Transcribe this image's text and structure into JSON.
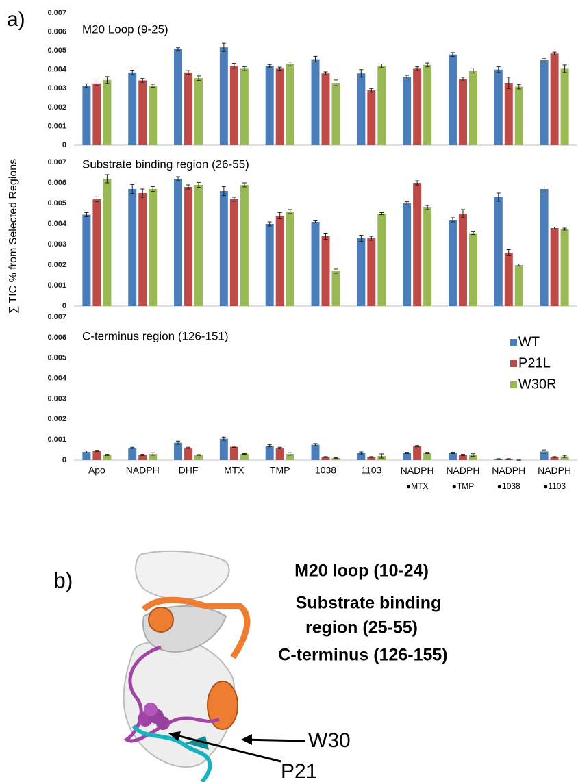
{
  "panel_a_label": "a)",
  "chart_data": {
    "type": "bar",
    "y_label": "∑ TIC % from Selected Regions",
    "categories": [
      "Apo",
      "NADPH",
      "DHF",
      "MTX",
      "TMP",
      "1038",
      "1103",
      "NADPH\n●MTX",
      "NADPH\n●TMP",
      "NADPH\n●1038",
      "NADPH\n●1103"
    ],
    "series": [
      {
        "name": "WT",
        "color": "#4a7ebb"
      },
      {
        "name": "P21L",
        "color": "#be4b48"
      },
      {
        "name": "W30R",
        "color": "#98b954"
      }
    ],
    "panels": [
      {
        "title": "M20 Loop (9-25)",
        "ylim": [
          0,
          0.007
        ],
        "yticks": [
          0,
          0.001,
          0.002,
          0.003,
          0.004,
          0.005,
          0.006,
          0.007
        ],
        "series": [
          {
            "values": [
              0.00315,
              0.00385,
              0.00508,
              0.00518,
              0.0042,
              0.00455,
              0.0038,
              0.0036,
              0.0048,
              0.004,
              0.0045
            ],
            "errors": [
              0.0001,
              0.00012,
              8e-05,
              0.00022,
              7e-05,
              0.00015,
              0.0002,
              0.0001,
              0.0001,
              0.00015,
              0.0001
            ]
          },
          {
            "values": [
              0.00327,
              0.00343,
              0.00385,
              0.0042,
              0.00405,
              0.0038,
              0.0029,
              0.00405,
              0.0035,
              0.0033,
              0.00485
            ],
            "errors": [
              0.00012,
              0.0001,
              0.0001,
              0.00013,
              8e-05,
              8e-05,
              0.0001,
              0.0001,
              0.0001,
              0.0003,
              8e-05
            ]
          },
          {
            "values": [
              0.00345,
              0.00315,
              0.00355,
              0.00405,
              0.0043,
              0.0033,
              0.0042,
              0.00425,
              0.00395,
              0.0031,
              0.00405
            ],
            "errors": [
              0.00018,
              8e-05,
              0.00012,
              0.0001,
              0.0001,
              0.00015,
              0.0001,
              0.0001,
              0.00013,
              0.00012,
              0.0002
            ]
          }
        ]
      },
      {
        "title": "Substrate binding region (26-55)",
        "ylim": [
          0,
          0.007
        ],
        "yticks": [
          0,
          0.001,
          0.002,
          0.003,
          0.004,
          0.005,
          0.006,
          0.007
        ],
        "series": [
          {
            "values": [
              0.00445,
              0.0057,
              0.0062,
              0.0056,
              0.004,
              0.0041,
              0.0033,
              0.005,
              0.0042,
              0.0053,
              0.0057
            ],
            "errors": [
              0.0001,
              0.00022,
              0.0001,
              0.00022,
              0.0001,
              5e-05,
              0.00015,
              8e-05,
              0.0001,
              0.0002,
              0.00015
            ]
          },
          {
            "values": [
              0.0052,
              0.0055,
              0.0058,
              0.0052,
              0.0044,
              0.0034,
              0.0033,
              0.006,
              0.0045,
              0.0026,
              0.0038
            ],
            "errors": [
              0.00012,
              0.0002,
              0.0001,
              0.0001,
              0.00015,
              0.00015,
              0.0001,
              0.0001,
              0.0002,
              0.00015,
              5e-05
            ]
          },
          {
            "values": [
              0.0062,
              0.0057,
              0.0059,
              0.0059,
              0.0046,
              0.0017,
              0.0045,
              0.0048,
              0.00355,
              0.002,
              0.00375
            ],
            "errors": [
              0.0002,
              0.00012,
              0.00012,
              0.0001,
              0.0001,
              0.0001,
              5e-05,
              0.0001,
              7e-05,
              5e-05,
              5e-05
            ]
          }
        ]
      },
      {
        "title": "C-terminus region (126-151)",
        "ylim": [
          0,
          0.007
        ],
        "yticks": [
          0,
          0.001,
          0.002,
          0.003,
          0.004,
          0.005,
          0.006,
          0.007
        ],
        "legend": "upper right",
        "series": [
          {
            "values": [
              0.0004,
              0.0006,
              0.00085,
              0.00105,
              0.0007,
              0.00075,
              0.00035,
              0.00035,
              0.00035,
              5e-05,
              0.00042
            ],
            "errors": [
              5e-05,
              3e-05,
              8e-05,
              8e-05,
              5e-05,
              6e-05,
              5e-05,
              3e-05,
              3e-05,
              2e-05,
              8e-05
            ]
          },
          {
            "values": [
              0.00045,
              0.00025,
              0.0006,
              0.00065,
              0.0006,
              0.00015,
              0.00015,
              0.00068,
              0.00025,
              5e-05,
              0.00015
            ],
            "errors": [
              3e-05,
              3e-05,
              3e-05,
              3e-05,
              3e-05,
              2e-05,
              2e-05,
              3e-05,
              3e-05,
              2e-05,
              2e-05
            ]
          },
          {
            "values": [
              0.00025,
              0.0003,
              0.00025,
              0.0003,
              0.0003,
              0.0001,
              0.0002,
              0.00035,
              0.00025,
              0.0,
              0.00018
            ],
            "errors": [
              3e-05,
              6e-05,
              2e-05,
              2e-05,
              6e-05,
              2e-05,
              0.0001,
              3e-05,
              6e-05,
              1e-05,
              5e-05
            ]
          }
        ]
      }
    ]
  },
  "figure_b": {
    "label": "b)",
    "legend": [
      {
        "text": "M20 loop  (10-24)",
        "color": "#a044a8"
      },
      {
        "text": "Substrate binding",
        "color": "#ee7d31"
      },
      {
        "text": "region (25-55)",
        "color": "#ee7d31"
      },
      {
        "text": "C-terminus (126-155)",
        "color": "#3fc0d8"
      }
    ],
    "annotations": [
      "W30",
      "P21"
    ]
  }
}
